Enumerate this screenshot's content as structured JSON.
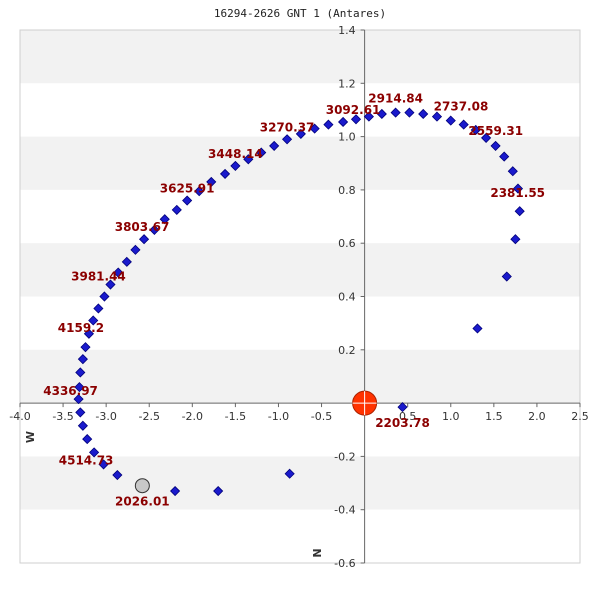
{
  "chart_data": {
    "type": "scatter",
    "title": "16294-2626 GNT   1 (Antares)",
    "xlabel": "W",
    "ylabel": "N",
    "xlim": [
      -4.0,
      2.5
    ],
    "ylim": [
      -0.6,
      1.4
    ],
    "x_ticks": [
      -4.0,
      -3.5,
      -3.0,
      -2.5,
      -2.0,
      -1.5,
      -1.0,
      -0.5,
      0.5,
      1.0,
      1.5,
      2.0,
      2.5
    ],
    "x_tick_labels": [
      "-4.0",
      "-3.5",
      "-3.0",
      "-2.5",
      "-2.0",
      "-1.5",
      "-1.0",
      "-0.5",
      "0.5",
      "1.0",
      "1.5",
      "2.0",
      "2.5"
    ],
    "y_ticks": [
      1.4,
      1.2,
      1.0,
      0.8,
      0.6,
      0.4,
      0.2,
      -0.2,
      -0.4,
      -0.6
    ],
    "y_tick_labels": [
      "1.4",
      "1.2",
      "1.0",
      "0.8",
      "0.6",
      "0.4",
      "0.2",
      "-0.2",
      "-0.4",
      "-0.6"
    ],
    "grid": "horizontal bands",
    "band_colors": [
      "#f2f2f2",
      "#ffffff"
    ],
    "point_color": "#1a1acc",
    "primary": {
      "x": 0.0,
      "y": 0.0,
      "color": "#ff3300"
    },
    "current": {
      "x": -2.58,
      "y": -0.31,
      "label": "2026.01",
      "color": "#c8c8c8"
    },
    "points": [
      [
        0.44,
        -0.015
      ],
      [
        1.31,
        0.28
      ],
      [
        1.65,
        0.475
      ],
      [
        1.75,
        0.615
      ],
      [
        1.8,
        0.72
      ],
      [
        1.78,
        0.805
      ],
      [
        1.72,
        0.87
      ],
      [
        1.62,
        0.925
      ],
      [
        1.52,
        0.965
      ],
      [
        1.41,
        0.995
      ],
      [
        1.29,
        1.025
      ],
      [
        1.15,
        1.045
      ],
      [
        1.0,
        1.06
      ],
      [
        0.84,
        1.075
      ],
      [
        0.68,
        1.085
      ],
      [
        0.52,
        1.09
      ],
      [
        0.36,
        1.09
      ],
      [
        0.2,
        1.085
      ],
      [
        0.05,
        1.075
      ],
      [
        -0.1,
        1.065
      ],
      [
        -0.25,
        1.055
      ],
      [
        -0.42,
        1.045
      ],
      [
        -0.58,
        1.03
      ],
      [
        -0.74,
        1.01
      ],
      [
        -0.9,
        0.99
      ],
      [
        -1.05,
        0.965
      ],
      [
        -1.2,
        0.94
      ],
      [
        -1.35,
        0.915
      ],
      [
        -1.5,
        0.89
      ],
      [
        -1.62,
        0.86
      ],
      [
        -1.78,
        0.83
      ],
      [
        -1.92,
        0.795
      ],
      [
        -2.06,
        0.76
      ],
      [
        -2.18,
        0.725
      ],
      [
        -2.32,
        0.69
      ],
      [
        -2.44,
        0.65
      ],
      [
        -2.56,
        0.615
      ],
      [
        -2.66,
        0.575
      ],
      [
        -2.76,
        0.53
      ],
      [
        -2.86,
        0.49
      ],
      [
        -2.95,
        0.445
      ],
      [
        -3.02,
        0.4
      ],
      [
        -3.09,
        0.355
      ],
      [
        -3.15,
        0.31
      ],
      [
        -3.2,
        0.26
      ],
      [
        -3.24,
        0.21
      ],
      [
        -3.27,
        0.165
      ],
      [
        -3.3,
        0.115
      ],
      [
        -3.31,
        0.06
      ],
      [
        -3.32,
        0.015
      ],
      [
        -3.3,
        -0.035
      ],
      [
        -3.27,
        -0.085
      ],
      [
        -3.22,
        -0.135
      ],
      [
        -3.14,
        -0.185
      ],
      [
        -3.03,
        -0.23
      ],
      [
        -2.87,
        -0.27
      ],
      [
        -2.58,
        -0.31
      ],
      [
        -2.2,
        -0.33
      ],
      [
        -1.7,
        -0.33
      ],
      [
        -0.87,
        -0.265
      ]
    ],
    "labels": [
      {
        "x": 0.44,
        "y": -0.015,
        "text": "2203.78"
      },
      {
        "x": 1.8,
        "y": 0.72,
        "text": "2381.55"
      },
      {
        "x": 1.29,
        "y": 1.025,
        "text": "2559.31"
      },
      {
        "x": 0.84,
        "y": 1.075,
        "text": "2737.08"
      },
      {
        "x": 0.36,
        "y": 1.09,
        "text": "2914.84"
      },
      {
        "x": -0.25,
        "y": 1.055,
        "text": "3092.61"
      },
      {
        "x": -0.9,
        "y": 0.99,
        "text": "3270.37"
      },
      {
        "x": -1.5,
        "y": 0.89,
        "text": "3448.14"
      },
      {
        "x": -2.06,
        "y": 0.76,
        "text": "3625.91"
      },
      {
        "x": -2.56,
        "y": 0.615,
        "text": "3803.67"
      },
      {
        "x": -2.95,
        "y": 0.445,
        "text": "3981.44"
      },
      {
        "x": -3.2,
        "y": 0.26,
        "text": "4159.2"
      },
      {
        "x": -3.32,
        "y": 0.015,
        "text": "4336.97"
      },
      {
        "x": -3.14,
        "y": -0.185,
        "text": "4514.73"
      }
    ]
  }
}
